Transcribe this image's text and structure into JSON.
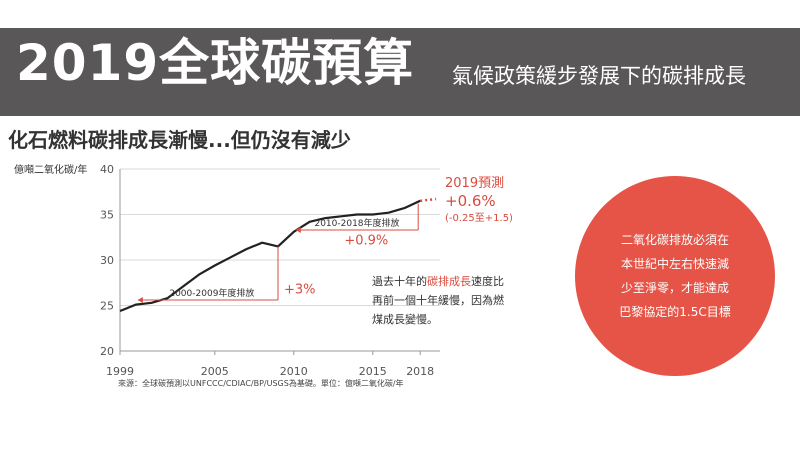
{
  "banner": {
    "title": "2019全球碳預算",
    "subtitle": "氣候政策緩步發展下的碳排成長"
  },
  "headline": "化石燃料碳排成長漸慢...但仍沒有減少",
  "chart_data": {
    "type": "line",
    "ylabel": "億噸二氧化碳/年",
    "ylim": [
      20,
      40
    ],
    "xlim": [
      1999,
      2019
    ],
    "y_ticks": [
      "20",
      "25",
      "30",
      "35",
      "40"
    ],
    "x_ticks": [
      "1999",
      "2005",
      "2010",
      "2015",
      "2018"
    ],
    "grid": true,
    "series": [
      {
        "x": [
          1999,
          2000,
          2001,
          2002,
          2003,
          2004,
          2005,
          2006,
          2007,
          2008,
          2009,
          2010,
          2011,
          2012,
          2013,
          2014,
          2015,
          2016,
          2017,
          2018
        ],
        "y": [
          24.4,
          25.1,
          25.3,
          25.8,
          27.1,
          28.4,
          29.4,
          30.3,
          31.2,
          31.9,
          31.5,
          33.1,
          34.2,
          34.6,
          34.8,
          35.0,
          35.0,
          35.2,
          35.7,
          36.5
        ]
      }
    ],
    "projection": {
      "x": [
        2018,
        2019
      ],
      "y": [
        36.5,
        36.7
      ]
    },
    "annotations": {
      "projection_title": "2019預測",
      "projection_value": "+0.6%",
      "projection_range": "(-0.25至+1.5)",
      "period1_label": "2000-2009年度排放",
      "period1_growth": "+3%",
      "period2_label": "2010-2018年度排放",
      "period2_growth": "+0.9%"
    }
  },
  "note": {
    "part1": "過去十年的",
    "highlight": "碳排成長",
    "part2": "速度比再前一個十年緩慢，因為燃煤成長變慢。"
  },
  "circle": {
    "line1": "二氧化碳排放必須在",
    "line2": "本世紀中左右快速減",
    "line3": "少至淨零，才能達成",
    "line4": "巴黎協定的1.5C目標"
  },
  "source": "來源：全球碳預測以UNFCCC/CDIAC/BP/USGS為基礎。單位：億噸二氧化碳/年",
  "colors": {
    "banner": "#595757",
    "accent": "#d94b3f",
    "circle": "#e55447",
    "line": "#222222"
  }
}
